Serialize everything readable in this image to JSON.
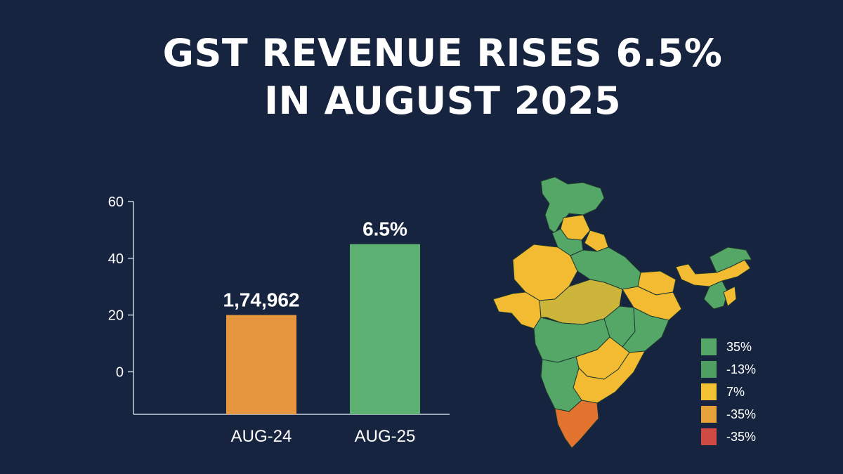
{
  "headline": {
    "line1": "GST REVENUE RISES 6.5%",
    "line2": "IN AUGUST 2025"
  },
  "chart_data": {
    "type": "bar",
    "categories": [
      "AUG-24",
      "AUG-25"
    ],
    "values": [
      20,
      45
    ],
    "data_labels": [
      "1,74,962",
      "6.5%"
    ],
    "colors": [
      "#e5963e",
      "#5cb071"
    ],
    "ylim": [
      -15,
      60
    ],
    "yticks": [
      0,
      20,
      40,
      60
    ],
    "grid": false,
    "title": "",
    "xlabel": "",
    "ylabel": ""
  },
  "map": {
    "colors": {
      "green": "#55a767",
      "yellow": "#f2bb32",
      "olive": "#cdb53c",
      "orange": "#e2742f"
    }
  },
  "legend": [
    {
      "label": "35%",
      "color": "#55a767"
    },
    {
      "label": "-13%",
      "color": "#4f9e62"
    },
    {
      "label": "7%",
      "color": "#f2c232"
    },
    {
      "label": "-35%",
      "color": "#e6a13a"
    },
    {
      "label": "-35%",
      "color": "#cf4a43"
    }
  ]
}
